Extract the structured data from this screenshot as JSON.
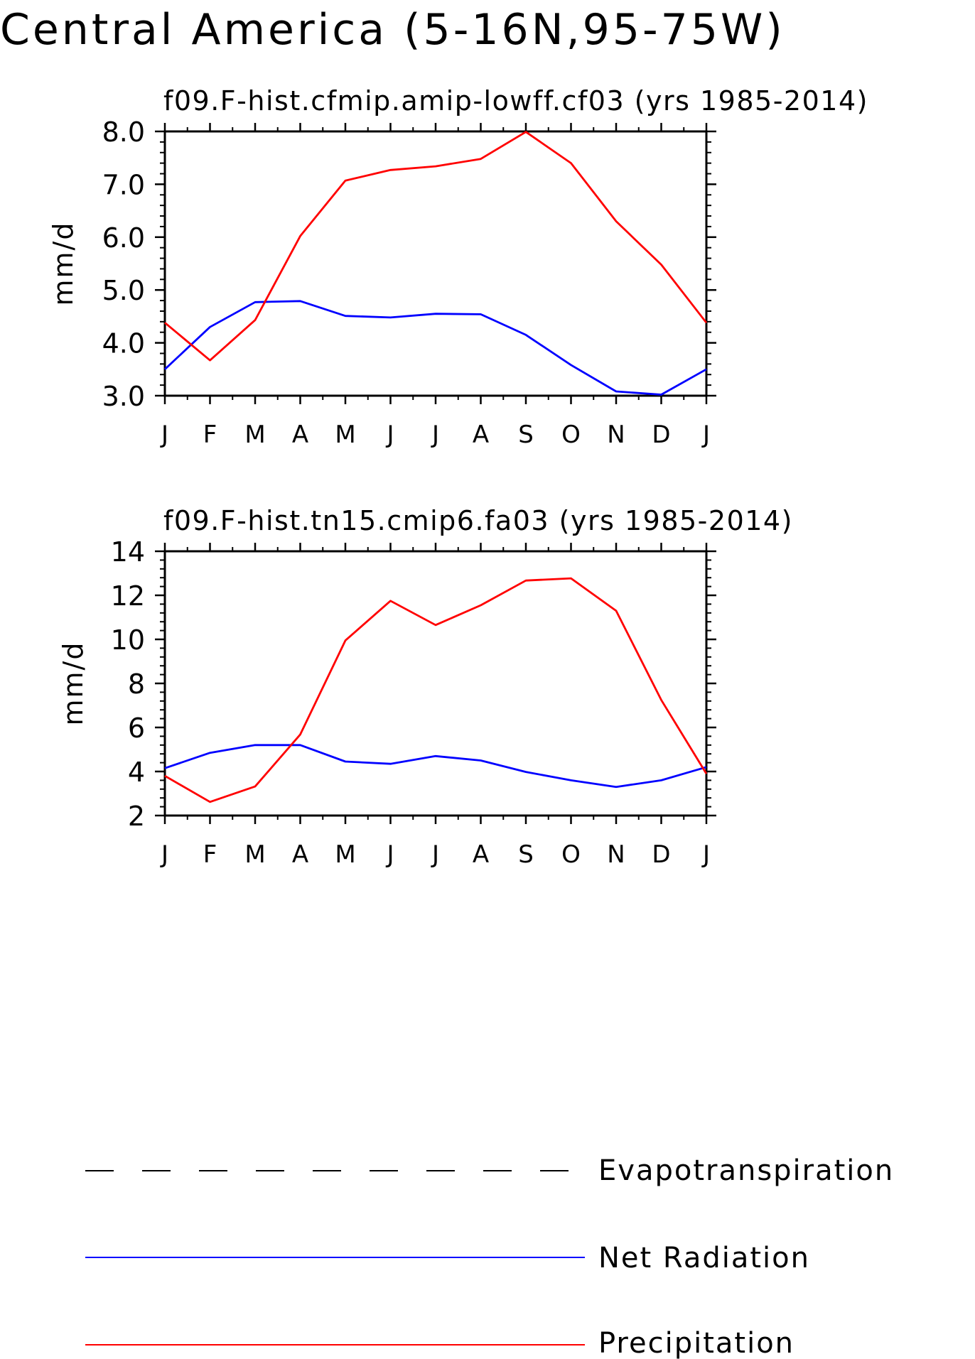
{
  "main_title": "Central America (5-16N,95-75W)",
  "legend": {
    "items": [
      {
        "label": "Evapotranspiration",
        "color": "#000000",
        "dash": "dashed"
      },
      {
        "label": "Net Radiation",
        "color": "#0000ff",
        "dash": "solid"
      },
      {
        "label": "Precipitation",
        "color": "#ff0000",
        "dash": "solid"
      }
    ]
  },
  "chart_data": [
    {
      "type": "line",
      "title": "f09.F-hist.cfmip.amip-lowff.cf03 (yrs 1985-2014)",
      "ylabel": "mm/d",
      "xlabel": "",
      "categories": [
        "J",
        "F",
        "M",
        "A",
        "M",
        "J",
        "J",
        "A",
        "S",
        "O",
        "N",
        "D",
        "J"
      ],
      "ylim": [
        3.0,
        8.0
      ],
      "yticks": [
        3.0,
        4.0,
        5.0,
        6.0,
        7.0,
        8.0
      ],
      "ytick_labels": [
        "3.0",
        "4.0",
        "5.0",
        "6.0",
        "7.0",
        "8.0"
      ],
      "yminor_step": 0.2,
      "grid": false,
      "series": [
        {
          "name": "Net Radiation",
          "color": "#0000ff",
          "values": [
            3.5,
            4.3,
            4.77,
            4.79,
            4.51,
            4.48,
            4.55,
            4.54,
            4.15,
            3.58,
            3.08,
            3.02,
            3.5
          ]
        },
        {
          "name": "Precipitation",
          "color": "#ff0000",
          "values": [
            4.38,
            3.67,
            4.43,
            6.02,
            7.07,
            7.27,
            7.34,
            7.48,
            7.99,
            7.4,
            6.3,
            5.48,
            4.38
          ]
        }
      ]
    },
    {
      "type": "line",
      "title": "f09.F-hist.tn15.cmip6.fa03 (yrs 1985-2014)",
      "ylabel": "mm/d",
      "xlabel": "",
      "categories": [
        "J",
        "F",
        "M",
        "A",
        "M",
        "J",
        "J",
        "A",
        "S",
        "O",
        "N",
        "D",
        "J"
      ],
      "ylim": [
        2,
        14
      ],
      "yticks": [
        2,
        4,
        6,
        8,
        10,
        12,
        14
      ],
      "ytick_labels": [
        "2",
        "4",
        "6",
        "8",
        "10",
        "12",
        "14"
      ],
      "yminor_step": 0.4,
      "grid": false,
      "series": [
        {
          "name": "Net Radiation",
          "color": "#0000ff",
          "values": [
            4.15,
            4.85,
            5.2,
            5.2,
            4.45,
            4.35,
            4.7,
            4.5,
            3.98,
            3.6,
            3.3,
            3.6,
            4.2
          ]
        },
        {
          "name": "Precipitation",
          "color": "#ff0000",
          "values": [
            3.8,
            2.62,
            3.32,
            5.68,
            9.95,
            11.75,
            10.65,
            11.55,
            12.67,
            12.77,
            11.3,
            7.25,
            3.9
          ]
        }
      ]
    }
  ]
}
